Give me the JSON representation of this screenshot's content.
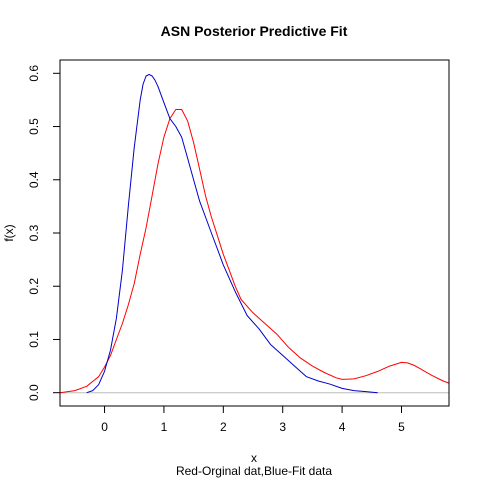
{
  "chart_data": {
    "type": "line",
    "title": "ASN Posterior Predictive Fit",
    "xlabel": "x",
    "ylabel": "f(x)",
    "subtitle": "Red-Orginal dat,Blue-Fit data",
    "xlim": [
      -0.75,
      5.8
    ],
    "ylim": [
      -0.025,
      0.625
    ],
    "xticks": [
      0,
      1,
      2,
      3,
      4,
      5
    ],
    "yticks": [
      0.0,
      0.1,
      0.2,
      0.3,
      0.4,
      0.5,
      0.6
    ],
    "xtick_labels": [
      "0",
      "1",
      "2",
      "3",
      "4",
      "5"
    ],
    "ytick_labels": [
      "0.0",
      "0.1",
      "0.2",
      "0.3",
      "0.4",
      "0.5",
      "0.6"
    ],
    "baseline": 0,
    "grid": false,
    "series": [
      {
        "color": "#ff0000",
        "x": [
          -0.75,
          -0.5,
          -0.3,
          -0.1,
          0.0,
          0.1,
          0.2,
          0.3,
          0.4,
          0.5,
          0.6,
          0.7,
          0.8,
          0.9,
          1.0,
          1.1,
          1.2,
          1.3,
          1.4,
          1.5,
          1.6,
          1.7,
          1.8,
          1.9,
          2.0,
          2.1,
          2.2,
          2.3,
          2.5,
          2.7,
          2.9,
          3.1,
          3.3,
          3.5,
          3.7,
          3.9,
          4.0,
          4.2,
          4.4,
          4.6,
          4.8,
          5.0,
          5.1,
          5.2,
          5.3,
          5.5,
          5.7,
          5.8
        ],
        "y": [
          0.0,
          0.004,
          0.012,
          0.03,
          0.048,
          0.07,
          0.1,
          0.13,
          0.165,
          0.205,
          0.26,
          0.31,
          0.37,
          0.43,
          0.48,
          0.515,
          0.532,
          0.532,
          0.51,
          0.47,
          0.42,
          0.37,
          0.33,
          0.295,
          0.26,
          0.23,
          0.2,
          0.175,
          0.15,
          0.13,
          0.11,
          0.085,
          0.065,
          0.05,
          0.038,
          0.028,
          0.025,
          0.026,
          0.032,
          0.04,
          0.05,
          0.057,
          0.056,
          0.052,
          0.046,
          0.033,
          0.022,
          0.018
        ]
      },
      {
        "color": "#0000cc",
        "x": [
          -0.3,
          -0.2,
          -0.1,
          0.0,
          0.1,
          0.2,
          0.3,
          0.4,
          0.5,
          0.6,
          0.65,
          0.7,
          0.75,
          0.8,
          0.85,
          0.9,
          1.0,
          1.1,
          1.2,
          1.3,
          1.4,
          1.5,
          1.6,
          1.7,
          1.8,
          1.9,
          2.0,
          2.2,
          2.4,
          2.6,
          2.8,
          3.0,
          3.2,
          3.4,
          3.6,
          3.8,
          4.0,
          4.2,
          4.4,
          4.6
        ],
        "y": [
          0.0,
          0.004,
          0.015,
          0.04,
          0.08,
          0.14,
          0.23,
          0.35,
          0.46,
          0.55,
          0.58,
          0.595,
          0.598,
          0.595,
          0.587,
          0.575,
          0.545,
          0.515,
          0.5,
          0.48,
          0.44,
          0.4,
          0.36,
          0.33,
          0.3,
          0.27,
          0.24,
          0.19,
          0.145,
          0.12,
          0.09,
          0.07,
          0.05,
          0.03,
          0.022,
          0.016,
          0.008,
          0.004,
          0.002,
          0.0
        ]
      }
    ]
  }
}
